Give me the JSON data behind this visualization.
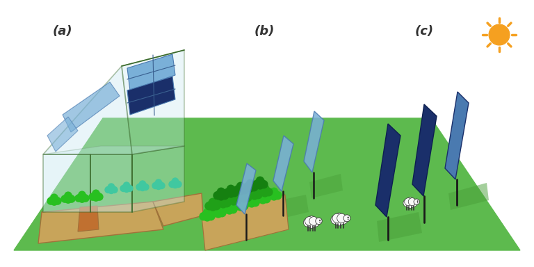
{
  "bg": "#ffffff",
  "green_ground": "#5dba4e",
  "green_dark": "#4aa83e",
  "soil_tan": "#c8a45a",
  "soil_brown": "#a0713a",
  "soil_orange": "#c07030",
  "glass_fill": "#c8e8f0",
  "glass_edge": "#3a6a2a",
  "panel_light": "#7ab0d8",
  "panel_mid": "#4a7ab0",
  "panel_dark": "#1a2f6a",
  "panel_darkest": "#0d1f50",
  "pole_color": "#1a1a1a",
  "bush_bright": "#28c020",
  "bush_mid": "#20a018",
  "bush_dark": "#158010",
  "teal_bush": "#40c8a0",
  "sheep_white": "#f8f8f8",
  "sheep_gray": "#cccccc",
  "sheep_dark": "#333333",
  "sun_orange": "#f5a020",
  "shadow_green": "#4aa03a",
  "label_fs": 13,
  "lbl_a": "(a)",
  "lbl_b": "(b)",
  "lbl_c": "(c)"
}
